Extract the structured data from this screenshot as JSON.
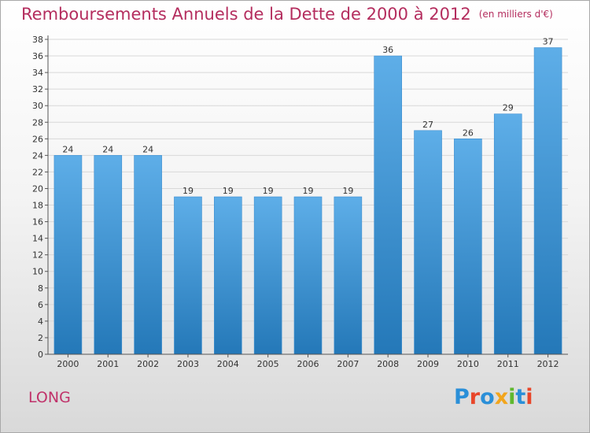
{
  "title": "Remboursements Annuels de la Dette de 2000 à 2012",
  "title_unit": "(en milliers d'€)",
  "commune": "LONG",
  "logo": {
    "text": "Proxiti",
    "letters": [
      {
        "ch": "P",
        "color": "#2a8fd8"
      },
      {
        "ch": "r",
        "color": "#e8462a"
      },
      {
        "ch": "o",
        "color": "#2a8fd8"
      },
      {
        "ch": "x",
        "color": "#f2a51c"
      },
      {
        "ch": "i",
        "color": "#5fb82e"
      },
      {
        "ch": "t",
        "color": "#2a8fd8"
      },
      {
        "ch": "i",
        "color": "#e8462a"
      }
    ]
  },
  "colors": {
    "title": "#b42d5e",
    "bar_top": "#5eaee8",
    "bar_bottom": "#2478b8",
    "axis": "#555555",
    "grid": "#d8d8d8"
  },
  "chart_data": {
    "type": "bar",
    "title": "Remboursements Annuels de la Dette de 2000 à 2012",
    "subtitle": "(en milliers d'€)",
    "xlabel": "",
    "ylabel": "",
    "categories": [
      "2000",
      "2001",
      "2002",
      "2003",
      "2004",
      "2005",
      "2006",
      "2007",
      "2008",
      "2009",
      "2010",
      "2011",
      "2012"
    ],
    "values": [
      24,
      24,
      24,
      19,
      19,
      19,
      19,
      19,
      36,
      27,
      26,
      29,
      37
    ],
    "ylim": [
      0,
      38
    ],
    "ytick_step": 2,
    "grid": true,
    "legend": "none"
  }
}
